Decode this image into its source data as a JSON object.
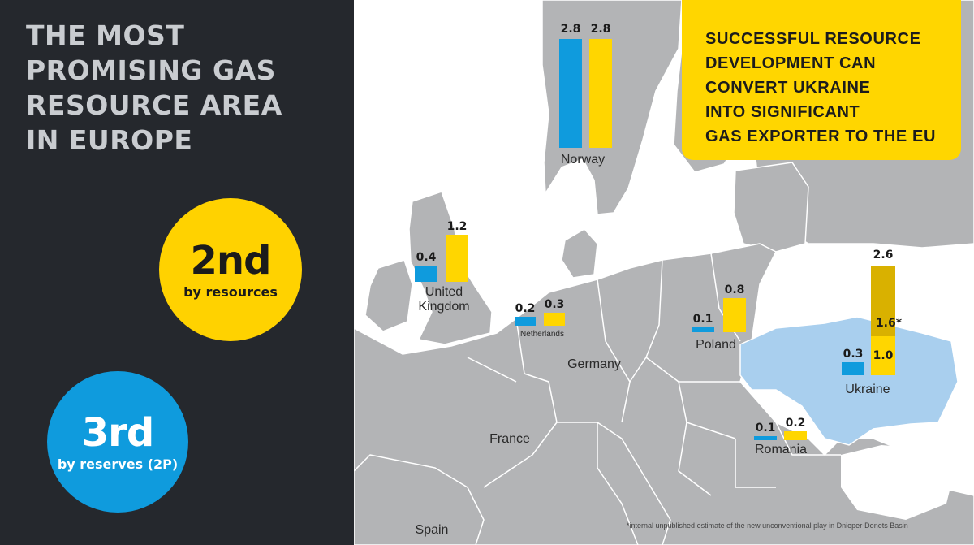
{
  "title": "THE MOST\nPROMISING GAS\nRESOURCE AREA\nIN EUROPE",
  "badges": {
    "resources": {
      "rank": "2nd",
      "label": "by resources",
      "color": "#ffd200"
    },
    "reserves": {
      "rank": "3rd",
      "label": "by reserves (2P)",
      "color": "#0f9bdd"
    }
  },
  "callout": "SUCCESSFUL RESOURCE\nDEVELOPMENT CAN\nCONVERT UKRAINE\nINTO SIGNIFICANT\nGAS EXPORTER TO THE EU",
  "countries": {
    "norway": {
      "name": "Norway",
      "blue": "2.8",
      "yellow": "2.8"
    },
    "uk": {
      "name": "United\nKingdom",
      "blue": "0.4",
      "yellow": "1.2"
    },
    "netherlands": {
      "name": "Netherlands",
      "blue": "0.2",
      "yellow": "0.3"
    },
    "poland": {
      "name": "Poland",
      "blue": "0.1",
      "yellow": "0.8"
    },
    "ukraine": {
      "name": "Ukraine",
      "blue": "0.3",
      "yellow_total": "2.6",
      "yellow_upper": "1.6*",
      "yellow_lower": "1.0"
    },
    "romania": {
      "name": "Romania",
      "blue": "0.1",
      "yellow": "0.2"
    }
  },
  "other_labels": {
    "germany": "Germany",
    "france": "France",
    "spain": "Spain"
  },
  "footnote": "*internal unpublished estimate of the new unconventional play in Dnieper-Donets Basin",
  "colors": {
    "panel": "#25282d",
    "blue": "#0f9bdd",
    "yellow": "#ffd600",
    "land": "#b3b4b6",
    "border": "#ffffff",
    "ukraine": "#a9cfee"
  }
}
